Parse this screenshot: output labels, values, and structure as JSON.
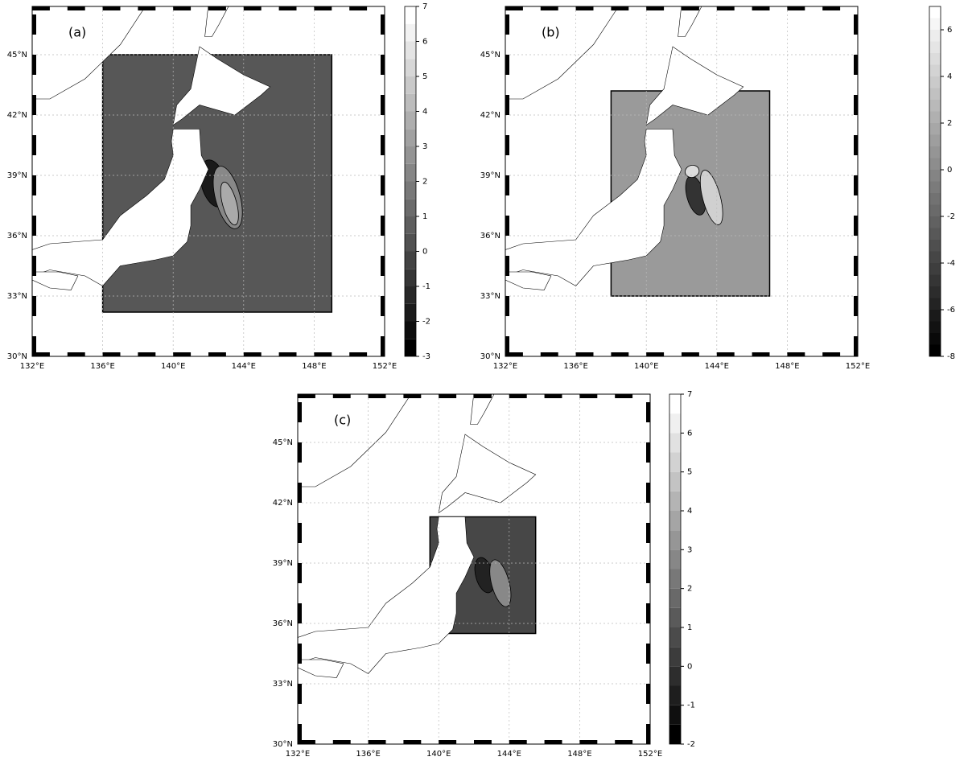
{
  "panels": [
    {
      "label": "(a)",
      "xlim": [
        132,
        152
      ],
      "ylim": [
        30,
        47.4
      ],
      "xticks": [
        {
          "value": 132,
          "label": "132°E"
        },
        {
          "value": 136,
          "label": "136°E"
        },
        {
          "value": 140,
          "label": "140°E"
        },
        {
          "value": 144,
          "label": "144°E"
        },
        {
          "value": 148,
          "label": "148°E"
        },
        {
          "value": 152,
          "label": "152°E"
        }
      ],
      "yticks": [
        {
          "value": 30,
          "label": "30°N"
        },
        {
          "value": 33,
          "label": "33°N"
        },
        {
          "value": 36,
          "label": "36°N"
        },
        {
          "value": 39,
          "label": "39°N"
        },
        {
          "value": 42,
          "label": "42°N"
        },
        {
          "value": 45,
          "label": "45°N"
        }
      ],
      "colorbar": {
        "lim": [
          -3,
          7
        ],
        "ticks": [
          -3,
          -2,
          -1,
          0,
          1,
          2,
          3,
          4,
          5,
          6,
          7
        ]
      }
    },
    {
      "label": "(b)",
      "xlim": [
        132,
        152
      ],
      "ylim": [
        30,
        47.4
      ],
      "xticks": [
        {
          "value": 132,
          "label": "132°E"
        },
        {
          "value": 136,
          "label": "136°E"
        },
        {
          "value": 140,
          "label": "140°E"
        },
        {
          "value": 144,
          "label": "144°E"
        },
        {
          "value": 148,
          "label": "148°E"
        },
        {
          "value": 152,
          "label": "152°E"
        }
      ],
      "yticks": [
        {
          "value": 30,
          "label": "30°N"
        },
        {
          "value": 33,
          "label": "33°N"
        },
        {
          "value": 36,
          "label": "36°N"
        },
        {
          "value": 39,
          "label": "39°N"
        },
        {
          "value": 42,
          "label": "42°N"
        },
        {
          "value": 45,
          "label": "45°N"
        }
      ],
      "colorbar": {
        "lim": [
          -8,
          7
        ],
        "ticks": [
          -8,
          -6,
          -4,
          -2,
          0,
          2,
          4,
          6
        ]
      }
    },
    {
      "label": "(c)",
      "xlim": [
        132,
        152
      ],
      "ylim": [
        30,
        47.4
      ],
      "xticks": [
        {
          "value": 132,
          "label": "132°E"
        },
        {
          "value": 136,
          "label": "136°E"
        },
        {
          "value": 140,
          "label": "140°E"
        },
        {
          "value": 144,
          "label": "144°E"
        },
        {
          "value": 148,
          "label": "148°E"
        },
        {
          "value": 152,
          "label": "152°E"
        }
      ],
      "yticks": [
        {
          "value": 30,
          "label": "30°N"
        },
        {
          "value": 33,
          "label": "33°N"
        },
        {
          "value": 36,
          "label": "36°N"
        },
        {
          "value": 39,
          "label": "39°N"
        },
        {
          "value": 42,
          "label": "42°N"
        },
        {
          "value": 45,
          "label": "45°N"
        }
      ],
      "colorbar": {
        "lim": [
          -2,
          7
        ],
        "ticks": [
          -2,
          -1,
          0,
          1,
          2,
          3,
          4,
          5,
          6,
          7
        ]
      }
    }
  ]
}
